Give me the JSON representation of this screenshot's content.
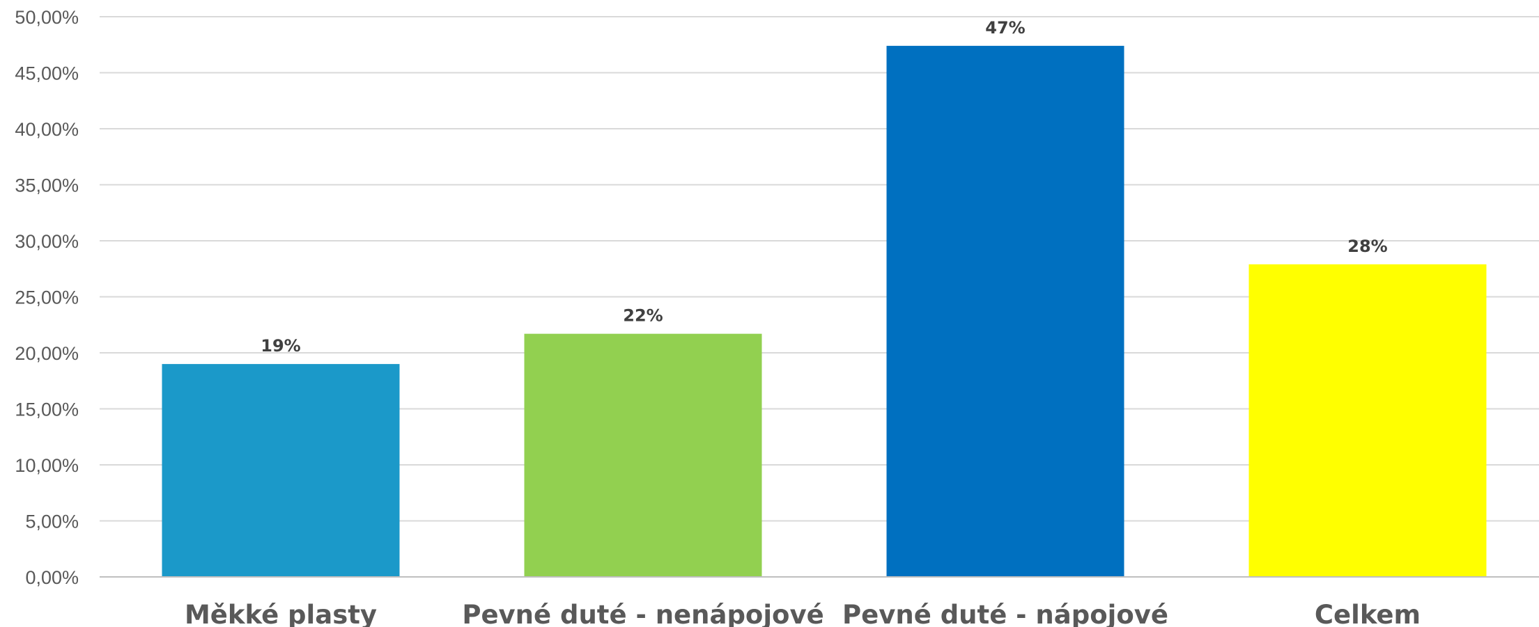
{
  "chart_data": {
    "type": "bar",
    "categories": [
      "Měkké plasty",
      "Pevné duté - nenápojové",
      "Pevné duté - nápojové",
      "Celkem"
    ],
    "values": [
      0.19,
      0.217,
      0.474,
      0.279
    ],
    "data_labels": [
      "19%",
      "22%",
      "47%",
      "28%"
    ],
    "colors": [
      "#1b99c9",
      "#92d050",
      "#0070c0",
      "#ffff00"
    ],
    "ylim": [
      0,
      0.5
    ],
    "yticks": [
      0,
      0.05,
      0.1,
      0.15,
      0.2,
      0.25,
      0.3,
      0.35,
      0.4,
      0.45,
      0.5
    ],
    "ytick_labels": [
      "0,00%",
      "5,00%",
      "10,00%",
      "15,00%",
      "20,00%",
      "25,00%",
      "30,00%",
      "35,00%",
      "40,00%",
      "45,00%",
      "50,00%"
    ],
    "grid": true,
    "legend": "none"
  }
}
